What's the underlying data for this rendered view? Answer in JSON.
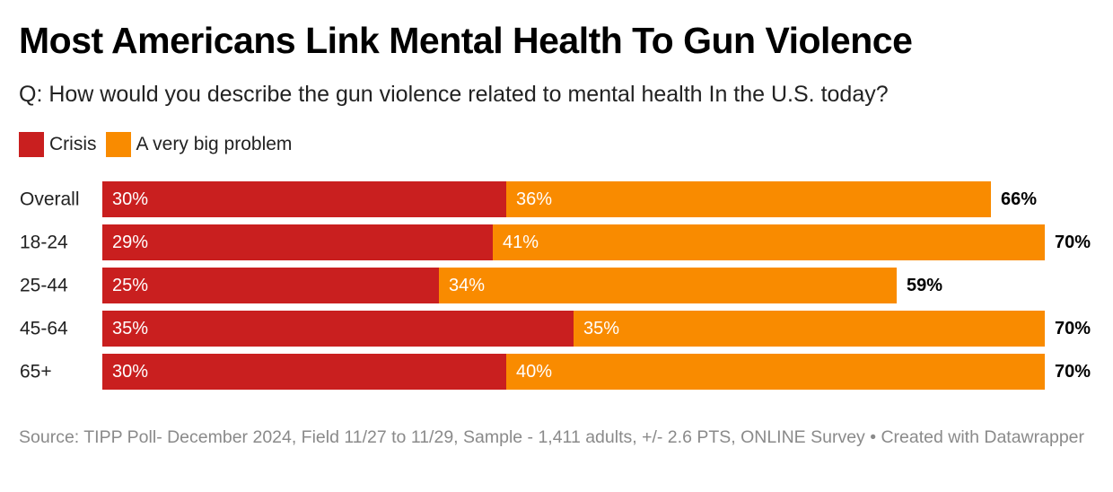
{
  "title": "Most Americans Link Mental Health To Gun Violence",
  "subtitle": "Q: How would you describe the gun violence related to mental health In the U.S. today?",
  "source": "Source: TIPP Poll- December 2024, Field 11/27 to 11/29, Sample - 1,411 adults, +/- 2.6 PTS, ONLINE Survey",
  "credit": "• Created with Datawrapper",
  "colors": {
    "crisis": "#c91f1f",
    "big_problem": "#f98b00"
  },
  "chart_data": {
    "type": "bar",
    "orientation": "horizontal",
    "stacked": true,
    "categories": [
      "Overall",
      "18-24",
      "25-44",
      "45-64",
      "65+"
    ],
    "series": [
      {
        "name": "Crisis",
        "values": [
          30,
          29,
          25,
          35,
          30
        ],
        "labels": [
          "30%",
          "29%",
          "25%",
          "35%",
          "30%"
        ]
      },
      {
        "name": "A very big problem",
        "values": [
          36,
          41,
          34,
          35,
          40
        ],
        "labels": [
          "36%",
          "41%",
          "34%",
          "35%",
          "40%"
        ]
      }
    ],
    "totals": [
      66,
      70,
      59,
      70,
      70
    ],
    "total_labels": [
      "66%",
      "70%",
      "59%",
      "70%",
      "70%"
    ],
    "xlim": [
      0,
      70
    ],
    "legend": "top-left",
    "grid": false
  }
}
